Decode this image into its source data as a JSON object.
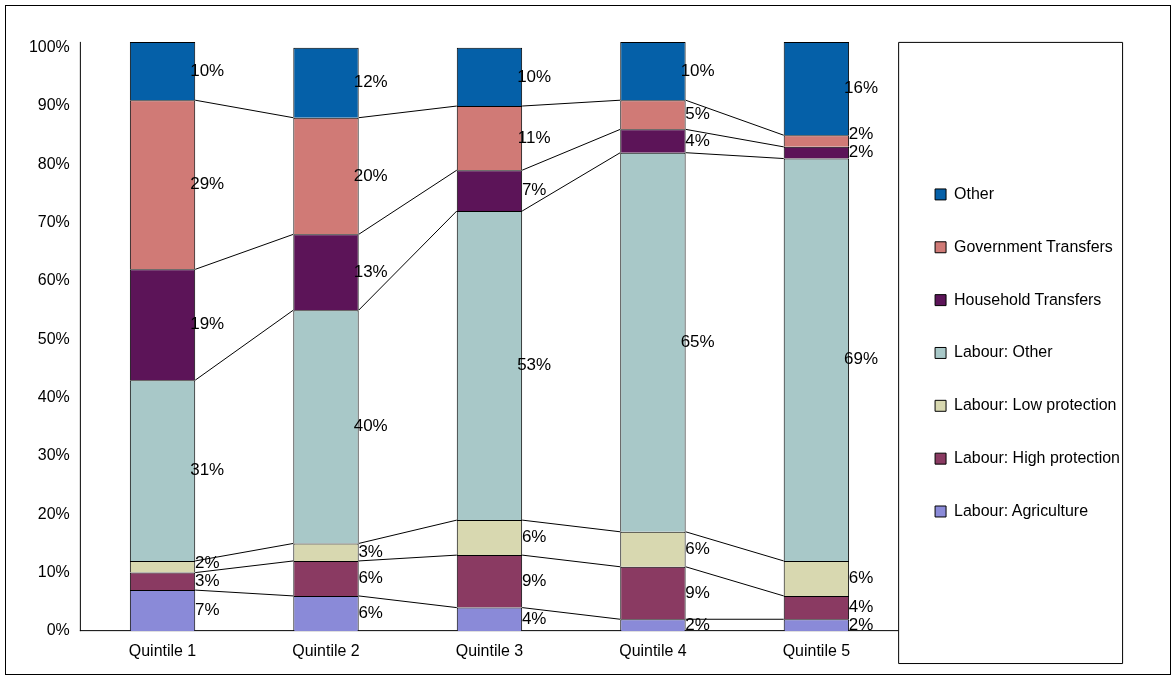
{
  "chart_data": {
    "type": "bar",
    "stacked": true,
    "categories": [
      "Quintile 1",
      "Quintile 2",
      "Quintile 3",
      "Quintile 4",
      "Quintile 5"
    ],
    "series": [
      {
        "name": "Labour: Agriculture",
        "color": "#8a8ad8",
        "values": [
          7,
          6,
          4,
          2,
          2
        ],
        "value_labels": [
          "7%",
          "6%",
          "4%",
          "2%",
          "2%"
        ]
      },
      {
        "name": "Labour: High protection",
        "color": "#8a3a62",
        "values": [
          3,
          6,
          9,
          9,
          4
        ],
        "value_labels": [
          "3%",
          "6%",
          "9%",
          "9%",
          "4%"
        ]
      },
      {
        "name": "Labour: Low protection",
        "color": "#d8d8b0",
        "values": [
          2,
          3,
          6,
          6,
          6
        ],
        "value_labels": [
          "2%",
          "3%",
          "6%",
          "6%",
          "6%"
        ]
      },
      {
        "name": "Labour: Other",
        "color": "#a8c8c8",
        "values": [
          31,
          40,
          53,
          65,
          69
        ],
        "value_labels": [
          "31%",
          "40%",
          "53%",
          "65%",
          "69%"
        ]
      },
      {
        "name": "Household Transfers",
        "color": "#5c1458",
        "values": [
          19,
          13,
          7,
          4,
          2
        ],
        "value_labels": [
          "19%",
          "13%",
          "7%",
          "4%",
          "2%"
        ]
      },
      {
        "name": "Government Transfers",
        "color": "#d07a76",
        "values": [
          29,
          20,
          11,
          5,
          2
        ],
        "value_labels": [
          "29%",
          "20%",
          "11%",
          "5%",
          "2%"
        ]
      },
      {
        "name": "Other",
        "color": "#0560a8",
        "values": [
          10,
          12,
          10,
          10,
          16
        ],
        "value_labels": [
          "10%",
          "12%",
          "10%",
          "10%",
          "16%"
        ]
      }
    ],
    "ylim": [
      0,
      101
    ],
    "yticks": [
      {
        "value": 0,
        "label": "0%"
      },
      {
        "value": 10,
        "label": "10%"
      },
      {
        "value": 20,
        "label": "20%"
      },
      {
        "value": 30,
        "label": "30%"
      },
      {
        "value": 40,
        "label": "40%"
      },
      {
        "value": 50,
        "label": "50%"
      },
      {
        "value": 60,
        "label": "60%"
      },
      {
        "value": 70,
        "label": "70%"
      },
      {
        "value": 80,
        "label": "80%"
      },
      {
        "value": 90,
        "label": "90%"
      },
      {
        "value": 100,
        "label": "100%"
      }
    ],
    "grid": false,
    "legend": "right"
  }
}
